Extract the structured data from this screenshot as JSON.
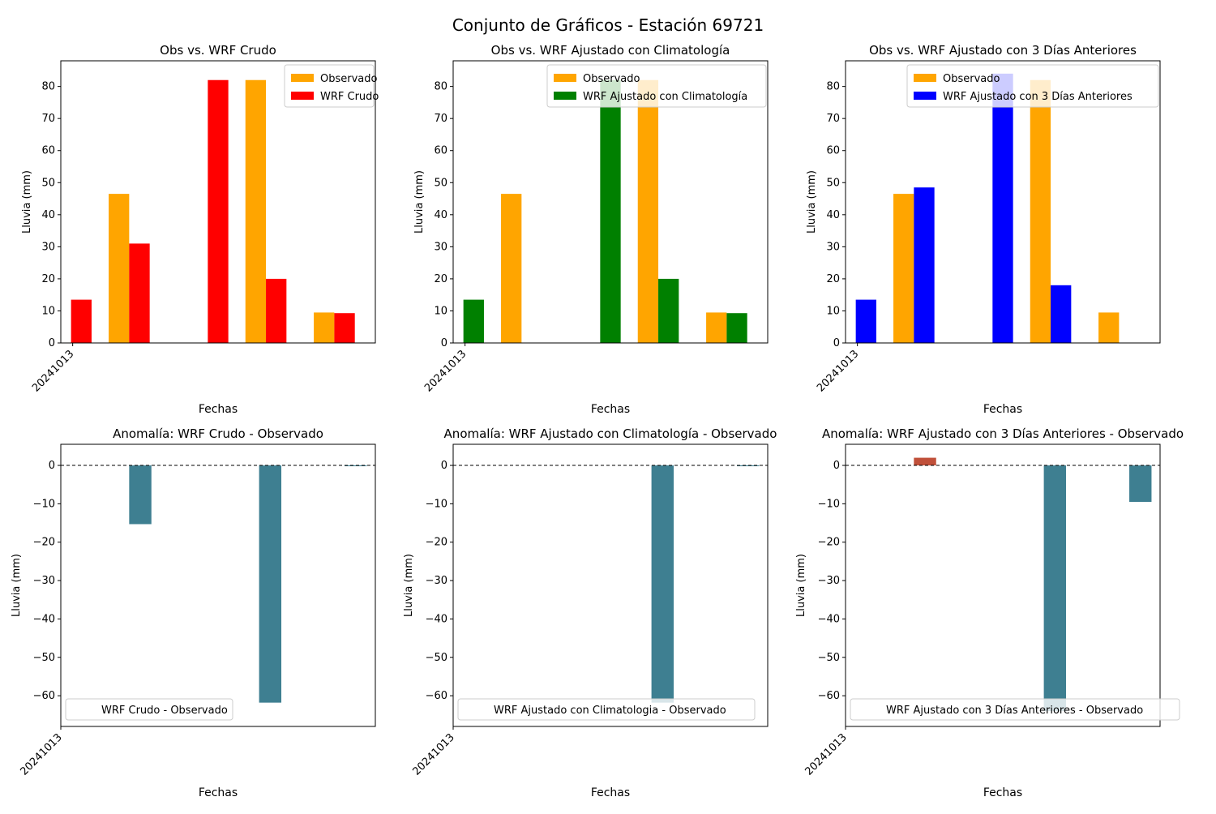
{
  "figure": {
    "title": "Conjunto de Gráficos - Estación 69721"
  },
  "colors": {
    "observado": "#ffa500",
    "wrf_crudo": "#ff0000",
    "wrf_clima": "#008000",
    "wrf_3dias": "#0000ff",
    "anomaly_negative": "#3e7f91",
    "anomaly_positive": "#c0503a"
  },
  "chart_data": [
    {
      "type": "bar",
      "title": "Obs vs. WRF Crudo",
      "xlabel": "Fechas",
      "ylabel": "Lluvia (mm)",
      "x_tick_labels": [
        "20241013"
      ],
      "ylim": [
        0,
        88
      ],
      "y_ticks": [
        0,
        10,
        20,
        30,
        40,
        50,
        60,
        70,
        80
      ],
      "legend": "top-right",
      "series": [
        {
          "name": "Observado",
          "color_key": "observado",
          "points": [
            [
              1.4,
              46.5
            ],
            [
              5.4,
              82.0
            ],
            [
              7.4,
              9.5
            ]
          ]
        },
        {
          "name": "WRF Crudo",
          "color_key": "wrf_crudo",
          "points": [
            [
              0.3,
              13.5
            ],
            [
              2.0,
              31.0
            ],
            [
              4.3,
              82.0
            ],
            [
              6.0,
              20.0
            ],
            [
              8.0,
              9.3
            ]
          ]
        }
      ]
    },
    {
      "type": "bar",
      "title": "Obs vs. WRF Ajustado con Climatología",
      "xlabel": "Fechas",
      "ylabel": "Lluvia (mm)",
      "x_tick_labels": [
        "20241013"
      ],
      "ylim": [
        0,
        88
      ],
      "y_ticks": [
        0,
        10,
        20,
        30,
        40,
        50,
        60,
        70,
        80
      ],
      "legend": "top-right",
      "series": [
        {
          "name": "Observado",
          "color_key": "observado",
          "points": [
            [
              1.4,
              46.5
            ],
            [
              5.4,
              82.0
            ],
            [
              7.4,
              9.5
            ]
          ]
        },
        {
          "name": "WRF Ajustado con Climatología",
          "color_key": "wrf_clima",
          "points": [
            [
              0.3,
              13.5
            ],
            [
              4.3,
              82.0
            ],
            [
              6.0,
              20.0
            ],
            [
              8.0,
              9.3
            ]
          ]
        }
      ]
    },
    {
      "type": "bar",
      "title": "Obs vs. WRF Ajustado con 3 Días Anteriores",
      "xlabel": "Fechas",
      "ylabel": "Lluvia (mm)",
      "x_tick_labels": [
        "20241013"
      ],
      "ylim": [
        0,
        88
      ],
      "y_ticks": [
        0,
        10,
        20,
        30,
        40,
        50,
        60,
        70,
        80
      ],
      "legend": "top-right",
      "series": [
        {
          "name": "Observado",
          "color_key": "observado",
          "points": [
            [
              1.4,
              46.5
            ],
            [
              5.4,
              82.0
            ],
            [
              7.4,
              9.5
            ]
          ]
        },
        {
          "name": "WRF Ajustado con 3 Días Anteriores",
          "color_key": "wrf_3dias",
          "points": [
            [
              0.3,
              13.5
            ],
            [
              2.0,
              48.5
            ],
            [
              4.3,
              84.0
            ],
            [
              6.0,
              18.0
            ]
          ]
        }
      ]
    },
    {
      "type": "bar",
      "title": "Anomalía: WRF Crudo - Observado",
      "xlabel": "Fechas",
      "ylabel": "Lluvia (mm)",
      "x_tick_labels": [
        "20241013"
      ],
      "ylim": [
        -68,
        5.5
      ],
      "y_ticks": [
        0,
        -10,
        -20,
        -30,
        -40,
        -50,
        -60
      ],
      "legend": "lower-left",
      "legend_label": "WRF Crudo - Observado",
      "zero_line": true,
      "points": [
        [
          2.0,
          -15.3
        ],
        [
          5.8,
          -61.8
        ],
        [
          8.3,
          -0.2
        ]
      ]
    },
    {
      "type": "bar",
      "title": "Anomalía: WRF Ajustado con Climatología - Observado",
      "xlabel": "Fechas",
      "ylabel": "Lluvia (mm)",
      "x_tick_labels": [
        "20241013"
      ],
      "ylim": [
        -68,
        5.5
      ],
      "y_ticks": [
        0,
        -10,
        -20,
        -30,
        -40,
        -50,
        -60
      ],
      "legend": "lower-left",
      "legend_label": "WRF Ajustado con Climatologia - Observado",
      "zero_line": true,
      "points": [
        [
          5.8,
          -61.8
        ],
        [
          8.3,
          -0.2
        ]
      ]
    },
    {
      "type": "bar",
      "title": "Anomalía: WRF Ajustado con 3 Días Anteriores - Observado",
      "xlabel": "Fechas",
      "ylabel": "Lluvia (mm)",
      "x_tick_labels": [
        "20241013"
      ],
      "ylim": [
        -68,
        5.5
      ],
      "y_ticks": [
        0,
        -10,
        -20,
        -30,
        -40,
        -50,
        -60
      ],
      "legend": "lower-left",
      "legend_label": "WRF Ajustado con 3 Días Anteriores - Observado",
      "zero_line": true,
      "points": [
        [
          2.0,
          2.0
        ],
        [
          5.8,
          -64.0
        ],
        [
          8.3,
          -9.5
        ]
      ]
    }
  ]
}
